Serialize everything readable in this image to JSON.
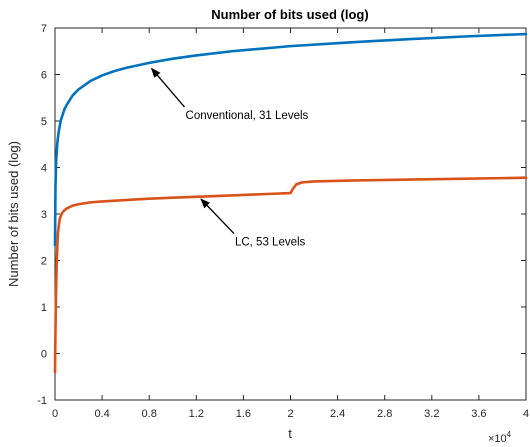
{
  "chart_data": {
    "type": "line",
    "title": "Number of bits used (log)",
    "xlabel": "t",
    "ylabel": "Number of bits used (log)",
    "x_exponent_label": "×10",
    "x_exponent_power": "4",
    "xlim": [
      0,
      40000
    ],
    "ylim": [
      -1,
      7
    ],
    "x_ticks": [
      0,
      4000,
      8000,
      12000,
      16000,
      20000,
      24000,
      28000,
      32000,
      36000,
      40000
    ],
    "x_tick_labels": [
      "0",
      "0.4",
      "0.8",
      "1.2",
      "1.6",
      "2",
      "2.4",
      "2.8",
      "3.2",
      "3.6",
      "4"
    ],
    "y_ticks": [
      -1,
      0,
      1,
      2,
      3,
      4,
      5,
      6,
      7
    ],
    "y_tick_labels": [
      "-1",
      "0",
      "1",
      "2",
      "3",
      "4",
      "5",
      "6",
      "7"
    ],
    "grid": false,
    "series": [
      {
        "color": "#0072BD",
        "x": [
          0,
          40,
          100,
          200,
          300,
          500,
          800,
          1000,
          1500,
          2000,
          3000,
          4000,
          5000,
          6000,
          8000,
          10000,
          12000,
          15000,
          20000,
          25000,
          30000,
          35000,
          40000
        ],
        "y": [
          2.33,
          3.6,
          4.15,
          4.53,
          4.75,
          5.02,
          5.25,
          5.35,
          5.55,
          5.68,
          5.86,
          5.98,
          6.07,
          6.14,
          6.25,
          6.34,
          6.41,
          6.5,
          6.61,
          6.69,
          6.76,
          6.82,
          6.87
        ]
      },
      {
        "color": "#D95319",
        "x": [
          0,
          30,
          80,
          150,
          250,
          400,
          600,
          800,
          1000,
          1500,
          2000,
          3000,
          4000,
          6000,
          8000,
          10000,
          12000,
          15000,
          18000,
          20000,
          20200,
          20500,
          21000,
          22000,
          25000,
          30000,
          35000,
          40000
        ],
        "y": [
          -0.4,
          0.3,
          1.2,
          2.0,
          2.6,
          2.9,
          3.02,
          3.08,
          3.12,
          3.18,
          3.21,
          3.25,
          3.27,
          3.3,
          3.33,
          3.35,
          3.37,
          3.4,
          3.43,
          3.45,
          3.54,
          3.64,
          3.68,
          3.7,
          3.72,
          3.74,
          3.76,
          3.78
        ]
      }
    ],
    "annotations": [
      {
        "text": "Conventional, 31 Levels",
        "tip_x": 8200,
        "tip_y": 6.13,
        "tail_x": 11000,
        "tail_y": 5.3
      },
      {
        "text": "LC, 53 Levels",
        "tip_x": 12400,
        "tip_y": 3.32,
        "tail_x": 15200,
        "tail_y": 2.58
      }
    ]
  }
}
